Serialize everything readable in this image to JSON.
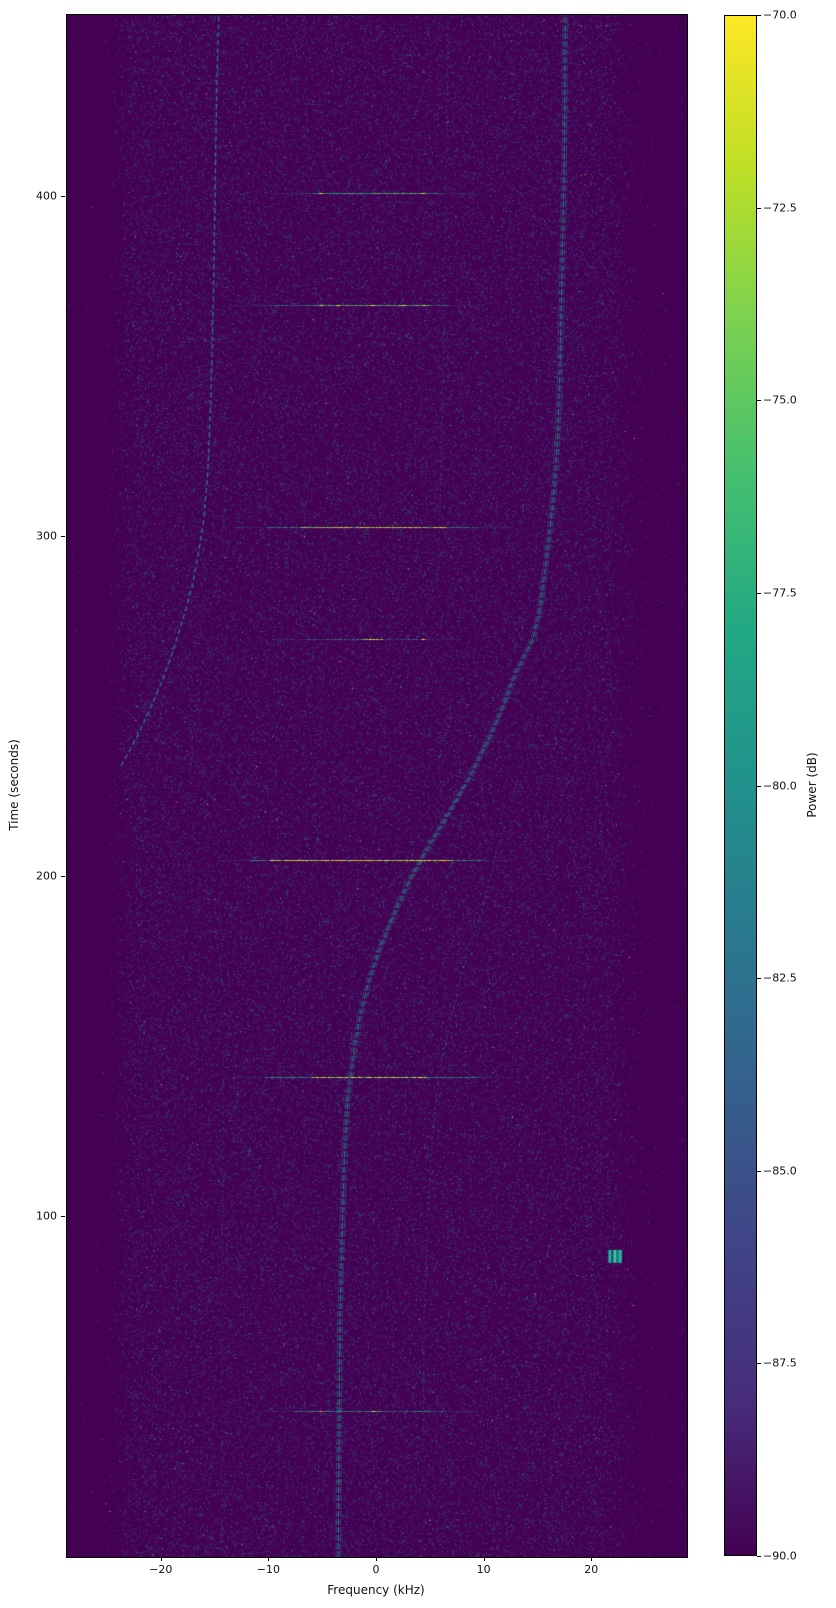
{
  "figure": {
    "kind": "spectrogram",
    "background": "#ffffff",
    "plot_background": "#440154"
  },
  "chart_data": {
    "type": "heatmap",
    "title": "",
    "xlabel": "Frequency (kHz)",
    "ylabel": "Time (seconds)",
    "colorbar_label": "Power (dB)",
    "x_range_khz": [
      -28.8,
      28.8
    ],
    "y_range_seconds": [
      0,
      453.4
    ],
    "x_tick_values": [
      -20,
      -10,
      0,
      10,
      20
    ],
    "x_tick_labels": [
      "−20",
      "−10",
      "0",
      "10",
      "20"
    ],
    "y_tick_values": [
      100,
      200,
      300,
      400
    ],
    "y_tick_labels": [
      "100",
      "200",
      "300",
      "400"
    ],
    "colorbar_range_db": [
      -90.0,
      -70.0
    ],
    "colorbar_tick_values": [
      -70.0,
      -72.5,
      -75.0,
      -77.5,
      -80.0,
      -82.5,
      -85.0,
      -87.5,
      -90.0
    ],
    "colorbar_tick_labels": [
      "−70.0",
      "−72.5",
      "−75.0",
      "−77.5",
      "−80.0",
      "−82.5",
      "−85.0",
      "−87.5",
      "−90.0"
    ],
    "colormap": "viridis",
    "colormap_stops_top_to_bottom": [
      "#fde725",
      "#bddf26",
      "#7ad151",
      "#44bf70",
      "#22a884",
      "#21918c",
      "#2a788e",
      "#355f8d",
      "#414487",
      "#472d7b",
      "#440154"
    ],
    "noise": {
      "floor_db": -90,
      "band_khz": [
        -22.4,
        20.4
      ],
      "count": 115000,
      "background_color": "#440154",
      "speckle_colors": [
        "#3b528b",
        "#33638d",
        "#2c728e",
        "#21918c",
        "#44bf70",
        "#fde725"
      ]
    },
    "bursts": [
      {
        "time": 401,
        "f_range": [
          -6.8,
          6.0
        ],
        "alpha": 0.5,
        "core": [
          -5.6,
          4.6
        ],
        "core_yellow": 0.1,
        "dots": [
          {
            "f": -5.2,
            "color": "#fde725"
          },
          {
            "f": 4.3,
            "color": "#fde725"
          }
        ]
      },
      {
        "time": 368,
        "f_range": [
          -10.1,
          6.7
        ],
        "alpha": 0.6,
        "core": [
          -6.0,
          5.0
        ],
        "core_yellow": 0.14,
        "dots": [
          {
            "f": -5.2,
            "color": "#fde725"
          },
          {
            "f": -3.6,
            "color": "#fde725"
          },
          {
            "f": -0.4,
            "color": "#fde725"
          },
          {
            "f": 2.5,
            "color": "#fde725"
          },
          {
            "f": 4.4,
            "color": "#fde725"
          }
        ]
      },
      {
        "time": 303,
        "f_range": [
          -10.2,
          9.4
        ],
        "alpha": 0.8,
        "core": [
          -7.1,
          6.5
        ],
        "core_yellow": 0.55,
        "dots": []
      },
      {
        "time": 270,
        "f_range": [
          -6.5,
          4.7
        ],
        "alpha": 0.4,
        "core": [
          -1.5,
          0.5
        ],
        "core_yellow": 0.3,
        "dots": [
          {
            "f": -0.6,
            "color": "#fde725"
          },
          {
            "f": 4.3,
            "color": "#fde725"
          }
        ]
      },
      {
        "time": 205,
        "f_range": [
          -11.7,
          9.7
        ],
        "alpha": 0.9,
        "core": [
          -10.0,
          7.0
        ],
        "core_yellow": 0.65,
        "dots": [
          {
            "f": -2.0,
            "color": "#f8961e"
          }
        ]
      },
      {
        "time": 141,
        "f_range": [
          -10.5,
          9.4
        ],
        "alpha": 0.8,
        "core": [
          -6.1,
          4.7
        ],
        "core_yellow": 0.55,
        "dots": []
      },
      {
        "time": 43,
        "f_range": [
          -7.7,
          6.2
        ],
        "alpha": 0.7,
        "core": [
          -0.6,
          0.2
        ],
        "core_yellow": 0.3,
        "dots": [
          {
            "f": -5.2,
            "color": "#f8961e"
          },
          {
            "f": -0.3,
            "color": "#fde725"
          }
        ]
      }
    ],
    "carriers": [
      {
        "name": "left-carrier",
        "points": [
          [
            453,
            -14.7
          ],
          [
            430,
            -14.9
          ],
          [
            400,
            -15.05
          ],
          [
            370,
            -15.2
          ],
          [
            340,
            -15.45
          ],
          [
            320,
            -15.7
          ],
          [
            305,
            -16.1
          ],
          [
            295,
            -16.6
          ],
          [
            285,
            -17.2
          ],
          [
            275,
            -18.1
          ],
          [
            266,
            -19.0
          ],
          [
            258,
            -19.9
          ],
          [
            250,
            -21.0
          ],
          [
            243,
            -22.0
          ],
          [
            237,
            -23.0
          ],
          [
            232,
            -23.9
          ]
        ],
        "alpha": 0.8,
        "width": 1.3,
        "dash": [
          5,
          3
        ],
        "strands": 1
      },
      {
        "name": "main-s-carrier",
        "points": [
          [
            0,
            -3.6
          ],
          [
            30,
            -3.55
          ],
          [
            43,
            -3.5
          ],
          [
            70,
            -3.45
          ],
          [
            100,
            -3.2
          ],
          [
            120,
            -3.0
          ],
          [
            135,
            -2.7
          ],
          [
            150,
            -2.1
          ],
          [
            160,
            -1.5
          ],
          [
            170,
            -0.7
          ],
          [
            180,
            0.4
          ],
          [
            190,
            1.7
          ],
          [
            200,
            3.2
          ],
          [
            210,
            5.0
          ],
          [
            220,
            6.9
          ],
          [
            230,
            8.7
          ],
          [
            240,
            10.3
          ],
          [
            250,
            11.7
          ],
          [
            260,
            12.9
          ],
          [
            270,
            14.5
          ],
          [
            280,
            15.2
          ],
          [
            290,
            15.6
          ],
          [
            300,
            16.0
          ],
          [
            315,
            16.5
          ],
          [
            330,
            16.8
          ],
          [
            350,
            17.0
          ],
          [
            380,
            17.2
          ],
          [
            410,
            17.4
          ],
          [
            453,
            17.5
          ]
        ],
        "alpha": 0.85,
        "width": 1.2,
        "dash": [
          6,
          2
        ],
        "strands": 3
      },
      {
        "name": "echo-carrier-right",
        "points": [
          [
            40,
            4.3
          ],
          [
            73,
            4.4
          ],
          [
            100,
            4.7
          ],
          [
            117,
            5.0
          ],
          [
            142,
            5.7
          ],
          [
            164,
            7.3
          ],
          [
            180,
            8.6
          ],
          [
            190,
            9.7
          ],
          [
            205,
            10.9
          ],
          [
            215,
            11.9
          ]
        ],
        "alpha": 0.32,
        "width": 1.1,
        "dash": [
          3,
          3
        ],
        "strands": 1
      },
      {
        "name": "upper-faint-trace",
        "points": [
          [
            285,
            5.6
          ],
          [
            300,
            5.8
          ],
          [
            340,
            6.1
          ],
          [
            380,
            6.3
          ],
          [
            420,
            6.5
          ],
          [
            453,
            6.6
          ]
        ],
        "alpha": 0.28,
        "width": 1.0,
        "dash": [
          3,
          3
        ],
        "strands": 1
      },
      {
        "name": "lower-left-faint-vertical",
        "points": [
          [
            0,
            -14.4
          ],
          [
            60,
            -14.4
          ],
          [
            120,
            -14.3
          ],
          [
            150,
            -14.3
          ]
        ],
        "alpha": 0.25,
        "width": 1.0,
        "dash": [
          3,
          4
        ],
        "strands": 1
      },
      {
        "name": "left-faint-diagonal",
        "points": [
          [
            173,
            -12.4
          ],
          [
            190,
            -10.2
          ],
          [
            205,
            -8.3
          ],
          [
            222,
            -4.9
          ]
        ],
        "alpha": 0.18,
        "width": 1.0,
        "dash": [
          3,
          3
        ],
        "strands": 1
      }
    ],
    "blob": {
      "t_range": [
        86.5,
        90.3
      ],
      "f_range_khz": [
        21.5,
        22.7
      ],
      "stripe_colors": [
        "#2ab5a5",
        "#145f66",
        "#49c2b2",
        "#1a7d7d",
        "#2ab5a5"
      ]
    }
  }
}
